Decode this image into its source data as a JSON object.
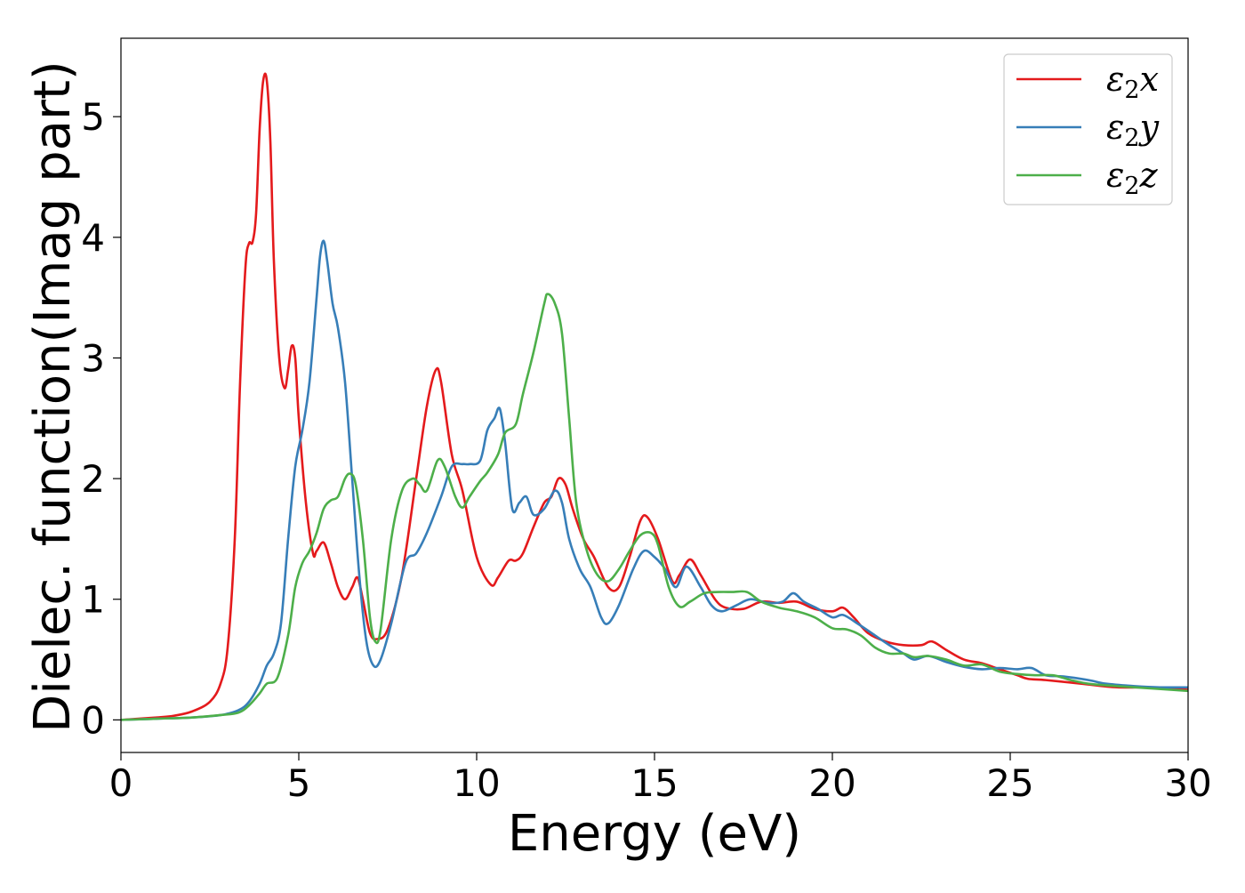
{
  "chart_data": {
    "type": "line",
    "title": "",
    "xlabel": "Energy (eV)",
    "ylabel": "Dielec. function(Imag part)",
    "xlim": [
      0,
      30
    ],
    "ylim": [
      -0.27,
      5.65
    ],
    "xticks": [
      0,
      5,
      10,
      15,
      20,
      25,
      30
    ],
    "xtick_labels": [
      "0",
      "5",
      "10",
      "15",
      "20",
      "25",
      "30"
    ],
    "yticks": [
      0,
      1,
      2,
      3,
      4,
      5
    ],
    "ytick_labels": [
      "0",
      "1",
      "2",
      "3",
      "4",
      "5"
    ],
    "grid": false,
    "legend_position": "top-right",
    "series": [
      {
        "name": "ε2x",
        "legend_main": "ε",
        "legend_sub": "2",
        "legend_suffix": "x",
        "color": "#e41a1c",
        "points": [
          [
            0,
            0
          ],
          [
            1,
            0.02
          ],
          [
            1.5,
            0.035
          ],
          [
            2,
            0.07
          ],
          [
            2.5,
            0.15
          ],
          [
            2.8,
            0.3
          ],
          [
            3.0,
            0.6
          ],
          [
            3.2,
            1.5
          ],
          [
            3.35,
            2.8
          ],
          [
            3.5,
            3.75
          ],
          [
            3.6,
            3.95
          ],
          [
            3.7,
            3.96
          ],
          [
            3.8,
            4.2
          ],
          [
            3.9,
            4.9
          ],
          [
            4.0,
            5.3
          ],
          [
            4.1,
            5.3
          ],
          [
            4.2,
            4.8
          ],
          [
            4.3,
            3.8
          ],
          [
            4.45,
            3.0
          ],
          [
            4.6,
            2.75
          ],
          [
            4.7,
            2.9
          ],
          [
            4.8,
            3.1
          ],
          [
            4.9,
            3.0
          ],
          [
            5.0,
            2.5
          ],
          [
            5.2,
            1.8
          ],
          [
            5.4,
            1.38
          ],
          [
            5.5,
            1.4
          ],
          [
            5.7,
            1.47
          ],
          [
            5.9,
            1.3
          ],
          [
            6.1,
            1.1
          ],
          [
            6.3,
            1.0
          ],
          [
            6.5,
            1.1
          ],
          [
            6.65,
            1.18
          ],
          [
            6.8,
            1.0
          ],
          [
            7.0,
            0.72
          ],
          [
            7.2,
            0.67
          ],
          [
            7.5,
            0.75
          ],
          [
            7.9,
            1.2
          ],
          [
            8.3,
            2.0
          ],
          [
            8.6,
            2.6
          ],
          [
            8.85,
            2.9
          ],
          [
            9.0,
            2.8
          ],
          [
            9.3,
            2.2
          ],
          [
            9.6,
            1.9
          ],
          [
            10.0,
            1.35
          ],
          [
            10.4,
            1.12
          ],
          [
            10.6,
            1.18
          ],
          [
            10.9,
            1.32
          ],
          [
            11.1,
            1.32
          ],
          [
            11.3,
            1.38
          ],
          [
            11.6,
            1.6
          ],
          [
            11.9,
            1.8
          ],
          [
            12.1,
            1.85
          ],
          [
            12.3,
            2.0
          ],
          [
            12.5,
            1.95
          ],
          [
            12.7,
            1.75
          ],
          [
            13.0,
            1.5
          ],
          [
            13.3,
            1.35
          ],
          [
            13.7,
            1.1
          ],
          [
            14.0,
            1.1
          ],
          [
            14.3,
            1.35
          ],
          [
            14.6,
            1.65
          ],
          [
            14.8,
            1.68
          ],
          [
            15.1,
            1.5
          ],
          [
            15.5,
            1.15
          ],
          [
            15.7,
            1.2
          ],
          [
            16.0,
            1.33
          ],
          [
            16.3,
            1.2
          ],
          [
            16.7,
            1.0
          ],
          [
            17.0,
            0.93
          ],
          [
            17.5,
            0.92
          ],
          [
            18.0,
            0.98
          ],
          [
            18.5,
            0.97
          ],
          [
            19.0,
            0.98
          ],
          [
            19.5,
            0.92
          ],
          [
            20.0,
            0.9
          ],
          [
            20.3,
            0.93
          ],
          [
            20.6,
            0.85
          ],
          [
            21.0,
            0.72
          ],
          [
            21.5,
            0.65
          ],
          [
            22.0,
            0.62
          ],
          [
            22.5,
            0.62
          ],
          [
            22.8,
            0.65
          ],
          [
            23.2,
            0.58
          ],
          [
            23.7,
            0.5
          ],
          [
            24.2,
            0.47
          ],
          [
            24.7,
            0.42
          ],
          [
            25.2,
            0.37
          ],
          [
            25.5,
            0.34
          ],
          [
            26.0,
            0.33
          ],
          [
            27.0,
            0.3
          ],
          [
            28.0,
            0.27
          ],
          [
            29.0,
            0.27
          ],
          [
            30.0,
            0.25
          ]
        ]
      },
      {
        "name": "ε2y",
        "legend_main": "ε",
        "legend_sub": "2",
        "legend_suffix": "y",
        "color": "#377eb8",
        "points": [
          [
            0,
            0
          ],
          [
            1,
            0.01
          ],
          [
            2,
            0.02
          ],
          [
            2.8,
            0.04
          ],
          [
            3.3,
            0.08
          ],
          [
            3.6,
            0.15
          ],
          [
            3.9,
            0.3
          ],
          [
            4.1,
            0.45
          ],
          [
            4.3,
            0.55
          ],
          [
            4.5,
            0.8
          ],
          [
            4.7,
            1.5
          ],
          [
            4.9,
            2.1
          ],
          [
            5.1,
            2.4
          ],
          [
            5.3,
            2.8
          ],
          [
            5.5,
            3.5
          ],
          [
            5.6,
            3.85
          ],
          [
            5.7,
            3.97
          ],
          [
            5.8,
            3.8
          ],
          [
            5.95,
            3.45
          ],
          [
            6.1,
            3.25
          ],
          [
            6.3,
            2.8
          ],
          [
            6.5,
            2.0
          ],
          [
            6.7,
            1.2
          ],
          [
            6.9,
            0.65
          ],
          [
            7.1,
            0.45
          ],
          [
            7.3,
            0.5
          ],
          [
            7.6,
            0.8
          ],
          [
            8.0,
            1.3
          ],
          [
            8.3,
            1.38
          ],
          [
            8.6,
            1.55
          ],
          [
            9.0,
            1.85
          ],
          [
            9.3,
            2.1
          ],
          [
            9.6,
            2.12
          ],
          [
            9.8,
            2.12
          ],
          [
            10.1,
            2.15
          ],
          [
            10.3,
            2.4
          ],
          [
            10.5,
            2.5
          ],
          [
            10.65,
            2.58
          ],
          [
            10.8,
            2.3
          ],
          [
            11.0,
            1.75
          ],
          [
            11.2,
            1.8
          ],
          [
            11.4,
            1.85
          ],
          [
            11.6,
            1.7
          ],
          [
            11.9,
            1.75
          ],
          [
            12.2,
            1.9
          ],
          [
            12.4,
            1.8
          ],
          [
            12.6,
            1.5
          ],
          [
            12.9,
            1.25
          ],
          [
            13.2,
            1.1
          ],
          [
            13.5,
            0.85
          ],
          [
            13.7,
            0.8
          ],
          [
            14.0,
            0.95
          ],
          [
            14.4,
            1.25
          ],
          [
            14.7,
            1.4
          ],
          [
            15.0,
            1.35
          ],
          [
            15.3,
            1.25
          ],
          [
            15.6,
            1.1
          ],
          [
            15.9,
            1.27
          ],
          [
            16.3,
            1.1
          ],
          [
            16.6,
            0.95
          ],
          [
            16.9,
            0.9
          ],
          [
            17.3,
            0.95
          ],
          [
            17.7,
            1.0
          ],
          [
            18.2,
            0.97
          ],
          [
            18.6,
            0.98
          ],
          [
            18.9,
            1.05
          ],
          [
            19.2,
            0.98
          ],
          [
            19.6,
            0.92
          ],
          [
            20.0,
            0.85
          ],
          [
            20.3,
            0.87
          ],
          [
            20.7,
            0.8
          ],
          [
            21.2,
            0.7
          ],
          [
            21.6,
            0.62
          ],
          [
            22.0,
            0.55
          ],
          [
            22.3,
            0.5
          ],
          [
            22.7,
            0.53
          ],
          [
            23.2,
            0.48
          ],
          [
            23.7,
            0.44
          ],
          [
            24.2,
            0.42
          ],
          [
            24.7,
            0.43
          ],
          [
            25.2,
            0.42
          ],
          [
            25.6,
            0.43
          ],
          [
            26.0,
            0.37
          ],
          [
            26.5,
            0.36
          ],
          [
            27.2,
            0.33
          ],
          [
            27.7,
            0.3
          ],
          [
            28.5,
            0.28
          ],
          [
            29.2,
            0.27
          ],
          [
            30.0,
            0.27
          ]
        ]
      },
      {
        "name": "ε2z",
        "legend_main": "ε",
        "legend_sub": "2",
        "legend_suffix": "z",
        "color": "#4daf4a",
        "points": [
          [
            0,
            0
          ],
          [
            1,
            0.01
          ],
          [
            2,
            0.02
          ],
          [
            2.8,
            0.04
          ],
          [
            3.3,
            0.06
          ],
          [
            3.6,
            0.12
          ],
          [
            3.9,
            0.22
          ],
          [
            4.1,
            0.3
          ],
          [
            4.4,
            0.35
          ],
          [
            4.7,
            0.7
          ],
          [
            4.9,
            1.1
          ],
          [
            5.1,
            1.3
          ],
          [
            5.3,
            1.4
          ],
          [
            5.5,
            1.55
          ],
          [
            5.7,
            1.75
          ],
          [
            5.9,
            1.82
          ],
          [
            6.1,
            1.85
          ],
          [
            6.3,
            2.0
          ],
          [
            6.45,
            2.04
          ],
          [
            6.6,
            1.95
          ],
          [
            6.8,
            1.5
          ],
          [
            7.0,
            0.85
          ],
          [
            7.15,
            0.65
          ],
          [
            7.3,
            0.75
          ],
          [
            7.6,
            1.5
          ],
          [
            7.9,
            1.9
          ],
          [
            8.2,
            2.0
          ],
          [
            8.4,
            1.95
          ],
          [
            8.6,
            1.9
          ],
          [
            8.9,
            2.15
          ],
          [
            9.1,
            2.1
          ],
          [
            9.4,
            1.85
          ],
          [
            9.6,
            1.76
          ],
          [
            9.8,
            1.85
          ],
          [
            10.1,
            1.98
          ],
          [
            10.3,
            2.05
          ],
          [
            10.6,
            2.2
          ],
          [
            10.8,
            2.38
          ],
          [
            11.1,
            2.45
          ],
          [
            11.3,
            2.7
          ],
          [
            11.6,
            3.05
          ],
          [
            11.9,
            3.45
          ],
          [
            12.0,
            3.53
          ],
          [
            12.2,
            3.45
          ],
          [
            12.4,
            3.2
          ],
          [
            12.6,
            2.5
          ],
          [
            12.8,
            1.8
          ],
          [
            13.1,
            1.4
          ],
          [
            13.4,
            1.2
          ],
          [
            13.7,
            1.15
          ],
          [
            14.0,
            1.25
          ],
          [
            14.3,
            1.4
          ],
          [
            14.6,
            1.53
          ],
          [
            14.9,
            1.55
          ],
          [
            15.1,
            1.45
          ],
          [
            15.4,
            1.1
          ],
          [
            15.7,
            0.94
          ],
          [
            16.0,
            0.98
          ],
          [
            16.4,
            1.05
          ],
          [
            16.8,
            1.06
          ],
          [
            17.2,
            1.06
          ],
          [
            17.6,
            1.06
          ],
          [
            18.0,
            0.98
          ],
          [
            18.5,
            0.93
          ],
          [
            19.0,
            0.9
          ],
          [
            19.5,
            0.85
          ],
          [
            20.0,
            0.76
          ],
          [
            20.4,
            0.75
          ],
          [
            20.8,
            0.7
          ],
          [
            21.2,
            0.6
          ],
          [
            21.6,
            0.55
          ],
          [
            22.0,
            0.55
          ],
          [
            22.3,
            0.52
          ],
          [
            22.7,
            0.53
          ],
          [
            23.2,
            0.5
          ],
          [
            23.7,
            0.45
          ],
          [
            24.2,
            0.46
          ],
          [
            24.7,
            0.4
          ],
          [
            25.2,
            0.38
          ],
          [
            25.7,
            0.37
          ],
          [
            26.2,
            0.37
          ],
          [
            26.7,
            0.33
          ],
          [
            27.2,
            0.3
          ],
          [
            28.0,
            0.28
          ],
          [
            29.0,
            0.26
          ],
          [
            30.0,
            0.24
          ]
        ]
      }
    ]
  }
}
